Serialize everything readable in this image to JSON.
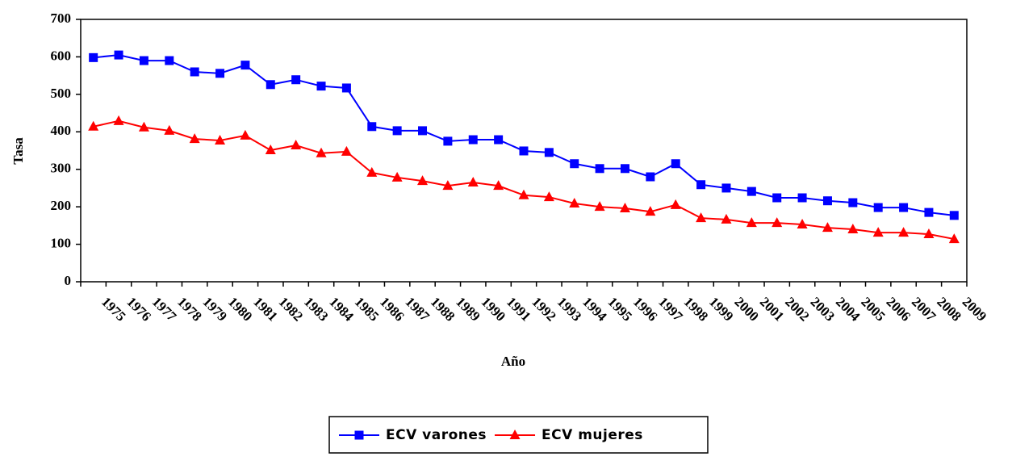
{
  "chart_data": {
    "type": "line",
    "x_label": "Año",
    "y_label": "Tasa",
    "categories": [
      "1975",
      "1976",
      "1977",
      "1978",
      "1979",
      "1980",
      "1981",
      "1982",
      "1983",
      "1984",
      "1985",
      "1986",
      "1987",
      "1988",
      "1989",
      "1990",
      "1991",
      "1992",
      "1993",
      "1994",
      "1995",
      "1996",
      "1997",
      "1998",
      "1999",
      "2000",
      "2001",
      "2002",
      "2003",
      "2004",
      "2005",
      "2006",
      "2007",
      "2008",
      "2009"
    ],
    "series": [
      {
        "name": "ECV varones",
        "color": "#0000ff",
        "marker": "square",
        "values": [
          598,
          605,
          590,
          590,
          560,
          556,
          578,
          526,
          539,
          522,
          517,
          414,
          403,
          403,
          375,
          379,
          379,
          349,
          345,
          315,
          302,
          302,
          280,
          315,
          259,
          250,
          241,
          224,
          224,
          216,
          211,
          198,
          198,
          185,
          177
        ]
      },
      {
        "name": "ECV mujeres",
        "color": "#ff0000",
        "marker": "triangle",
        "values": [
          414,
          429,
          412,
          403,
          381,
          377,
          390,
          351,
          364,
          343,
          347,
          291,
          278,
          269,
          256,
          265,
          256,
          231,
          226,
          209,
          200,
          196,
          187,
          205,
          170,
          166,
          157,
          157,
          153,
          144,
          140,
          131,
          131,
          127,
          114
        ]
      }
    ],
    "ylim": [
      0,
      700
    ],
    "yticks": [
      0,
      100,
      200,
      300,
      400,
      500,
      600,
      700
    ],
    "grid": false,
    "legend": "bottom"
  }
}
